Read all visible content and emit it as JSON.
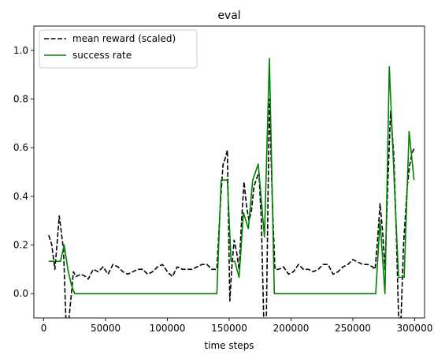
{
  "chart_data": {
    "type": "line",
    "title": "eval",
    "xlabel": "time steps",
    "ylabel": "",
    "xlim": [
      -8000,
      308000
    ],
    "ylim": [
      -0.1,
      1.1
    ],
    "xticks": [
      0,
      50000,
      100000,
      150000,
      200000,
      250000,
      300000
    ],
    "xtick_labels": [
      "0",
      "50000",
      "100000",
      "150000",
      "200000",
      "250000",
      "300000"
    ],
    "yticks": [
      0.0,
      0.2,
      0.4,
      0.6,
      0.8,
      1.0
    ],
    "ytick_labels": [
      "0.0",
      "0.2",
      "0.4",
      "0.6",
      "0.8",
      "1.0"
    ],
    "grid": false,
    "legend_position": "top-left",
    "series": [
      {
        "name": "mean reward (scaled)",
        "color": "#000000",
        "linestyle": "dashed",
        "points": [
          [
            4000,
            0.24
          ],
          [
            6500,
            0.2
          ],
          [
            9000,
            0.1
          ],
          [
            11000,
            0.22
          ],
          [
            12500,
            0.32
          ],
          [
            14000,
            0.26
          ],
          [
            16000,
            0.18
          ],
          [
            18000,
            -0.12
          ],
          [
            20000,
            -0.12
          ],
          [
            22000,
            -0.02
          ],
          [
            24000,
            0.09
          ],
          [
            26000,
            0.07
          ],
          [
            30000,
            0.08
          ],
          [
            34000,
            0.07
          ],
          [
            36000,
            0.06
          ],
          [
            40000,
            0.1
          ],
          [
            44000,
            0.09
          ],
          [
            48000,
            0.11
          ],
          [
            52000,
            0.08
          ],
          [
            56000,
            0.12
          ],
          [
            60000,
            0.11
          ],
          [
            64000,
            0.09
          ],
          [
            68000,
            0.08
          ],
          [
            72000,
            0.09
          ],
          [
            76000,
            0.1
          ],
          [
            80000,
            0.1
          ],
          [
            84000,
            0.08
          ],
          [
            88000,
            0.09
          ],
          [
            92000,
            0.11
          ],
          [
            96000,
            0.12
          ],
          [
            100000,
            0.09
          ],
          [
            104000,
            0.07
          ],
          [
            108000,
            0.11
          ],
          [
            112000,
            0.1
          ],
          [
            116000,
            0.1
          ],
          [
            120000,
            0.1
          ],
          [
            124000,
            0.11
          ],
          [
            128000,
            0.12
          ],
          [
            132000,
            0.12
          ],
          [
            136000,
            0.1
          ],
          [
            140000,
            0.1
          ],
          [
            143000,
            0.38
          ],
          [
            145000,
            0.53
          ],
          [
            147000,
            0.56
          ],
          [
            148500,
            0.59
          ],
          [
            150500,
            -0.03
          ],
          [
            152000,
            0.1
          ],
          [
            154000,
            0.22
          ],
          [
            156000,
            0.17
          ],
          [
            158000,
            0.1
          ],
          [
            160000,
            0.3
          ],
          [
            162000,
            0.46
          ],
          [
            164000,
            0.36
          ],
          [
            166000,
            0.3
          ],
          [
            168000,
            0.34
          ],
          [
            170000,
            0.44
          ],
          [
            172000,
            0.47
          ],
          [
            174000,
            0.5
          ],
          [
            176000,
            0.3
          ],
          [
            178000,
            -0.12
          ],
          [
            180000,
            -0.12
          ],
          [
            182500,
            0.8
          ],
          [
            185000,
            0.36
          ],
          [
            187000,
            0.1
          ],
          [
            190000,
            0.1
          ],
          [
            194000,
            0.11
          ],
          [
            198000,
            0.08
          ],
          [
            202000,
            0.09
          ],
          [
            206000,
            0.12
          ],
          [
            210000,
            0.1
          ],
          [
            214000,
            0.1
          ],
          [
            218000,
            0.09
          ],
          [
            222000,
            0.1
          ],
          [
            226000,
            0.12
          ],
          [
            230000,
            0.12
          ],
          [
            234000,
            0.08
          ],
          [
            238000,
            0.09
          ],
          [
            242000,
            0.11
          ],
          [
            246000,
            0.12
          ],
          [
            250000,
            0.14
          ],
          [
            254000,
            0.13
          ],
          [
            258000,
            0.12
          ],
          [
            262000,
            0.12
          ],
          [
            266000,
            0.11
          ],
          [
            268000,
            0.1
          ],
          [
            270000,
            0.22
          ],
          [
            272000,
            0.37
          ],
          [
            274000,
            0.26
          ],
          [
            276000,
            0.1
          ],
          [
            278000,
            0.41
          ],
          [
            280500,
            0.75
          ],
          [
            283000,
            0.58
          ],
          [
            285000,
            0.28
          ],
          [
            287000,
            -0.1
          ],
          [
            289000,
            -0.1
          ],
          [
            291000,
            0.2
          ],
          [
            294000,
            0.44
          ],
          [
            296000,
            0.53
          ],
          [
            298000,
            0.58
          ],
          [
            300000,
            0.6
          ]
        ]
      },
      {
        "name": "success rate",
        "color": "#008000",
        "linestyle": "solid",
        "points": [
          [
            4000,
            0.133
          ],
          [
            8000,
            0.133
          ],
          [
            10500,
            0.133
          ],
          [
            13500,
            0.133
          ],
          [
            16500,
            0.2
          ],
          [
            19500,
            0.1
          ],
          [
            22500,
            0.033
          ],
          [
            25000,
            0.0
          ],
          [
            140000,
            0.0
          ],
          [
            143500,
            0.467
          ],
          [
            148500,
            0.467
          ],
          [
            151500,
            0.133
          ],
          [
            154500,
            0.133
          ],
          [
            158000,
            0.067
          ],
          [
            161500,
            0.333
          ],
          [
            165500,
            0.267
          ],
          [
            169000,
            0.467
          ],
          [
            173500,
            0.533
          ],
          [
            178500,
            0.233
          ],
          [
            182500,
            0.967
          ],
          [
            186500,
            0.0
          ],
          [
            268500,
            0.0
          ],
          [
            272000,
            0.3
          ],
          [
            276000,
            0.0
          ],
          [
            279500,
            0.933
          ],
          [
            284000,
            0.4
          ],
          [
            287000,
            0.067
          ],
          [
            291500,
            0.067
          ],
          [
            295500,
            0.667
          ],
          [
            299500,
            0.467
          ]
        ]
      }
    ]
  }
}
